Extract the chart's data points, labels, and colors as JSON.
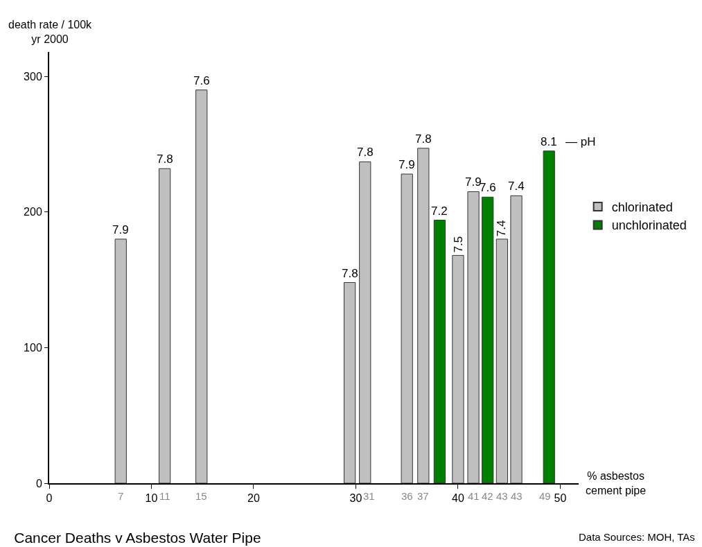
{
  "chart_data": {
    "type": "bar",
    "title": "Cancer Deaths v Asbestos Water Pipe",
    "ylabel": "death rate / 100k\nyr 2000",
    "xlabel": "% asbestos\ncement pipe",
    "series": [
      {
        "name": "chlorinated",
        "color": "#c0c0c0",
        "x": [
          7.0,
          11.3,
          14.9,
          29.4,
          30.9,
          35.0,
          36.6,
          40.0,
          41.5,
          44.3,
          45.7
        ],
        "values": [
          180,
          232,
          290,
          148,
          237,
          228,
          247,
          168,
          215,
          180,
          212
        ]
      },
      {
        "name": "unchlorinated",
        "color": "#008000",
        "x": [
          38.2,
          42.9,
          48.9
        ],
        "values": [
          194,
          211,
          245
        ]
      }
    ],
    "xlim": [
      0,
      51.8
    ],
    "ylim": [
      0,
      318
    ],
    "xticks": [
      0,
      10,
      20,
      30,
      40,
      50
    ],
    "yticks": [
      0,
      100,
      200,
      300
    ],
    "annotations": [
      {
        "text": "7.9",
        "x": 7.0,
        "y": 180
      },
      {
        "text": "7.8",
        "x": 11.3,
        "y": 232
      },
      {
        "text": "7.6",
        "x": 14.9,
        "y": 290
      },
      {
        "text": "7.8",
        "x": 29.4,
        "y": 148
      },
      {
        "text": "7.8",
        "x": 30.9,
        "y": 237
      },
      {
        "text": "7.9",
        "x": 35.0,
        "y": 228
      },
      {
        "text": "7.8",
        "x": 36.6,
        "y": 247
      },
      {
        "text": "7.2",
        "x": 38.2,
        "y": 194
      },
      {
        "text": "7.5",
        "x": 40.0,
        "y": 168
      },
      {
        "text": "7.9",
        "x": 41.5,
        "y": 215
      },
      {
        "text": "7.6",
        "x": 42.9,
        "y": 211
      },
      {
        "text": "7.4",
        "x": 44.3,
        "y": 180
      },
      {
        "text": "7.4",
        "x": 45.7,
        "y": 212
      },
      {
        "text": "8.1",
        "x": 48.9,
        "y": 245
      },
      {
        "text": "7",
        "x": 7.0,
        "y": 0
      },
      {
        "text": "11",
        "x": 11.3,
        "y": 0
      },
      {
        "text": "15",
        "x": 14.9,
        "y": 0
      },
      {
        "text": "31",
        "x": 30.9,
        "y": 0
      },
      {
        "text": "36",
        "x": 35.0,
        "y": 0
      },
      {
        "text": "37",
        "x": 36.6,
        "y": 0
      },
      {
        "text": "41",
        "x": 41.5,
        "y": 0
      },
      {
        "text": "42",
        "x": 42.9,
        "y": 0
      },
      {
        "text": "43",
        "x": 44.3,
        "y": 0
      },
      {
        "text": "43",
        "x": 45.7,
        "y": 0
      },
      {
        "text": "49",
        "x": 48.9,
        "y": 0
      },
      "— pH",
      "Data Sources: MOH, TAs"
    ],
    "legend": "right"
  }
}
